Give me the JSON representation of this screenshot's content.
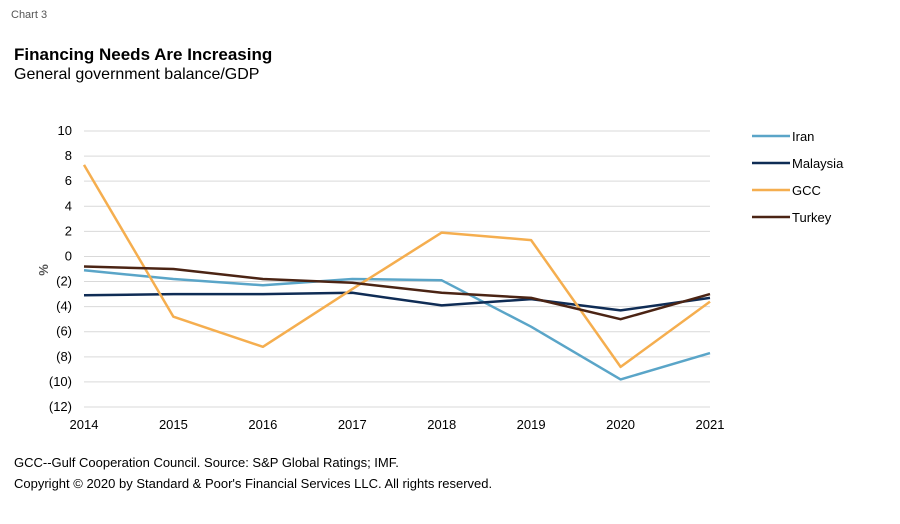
{
  "header": {
    "chart_label": "Chart 3",
    "title": "Financing Needs Are Increasing",
    "subtitle": "General government balance/GDP"
  },
  "footer": {
    "note": "GCC--Gulf Cooperation Council. Source: S&P Global Ratings; IMF.",
    "copyright": "Copyright © 2020 by Standard & Poor's Financial Services LLC. All rights reserved."
  },
  "chart_data": {
    "type": "line",
    "title": "Financing Needs Are Increasing",
    "subtitle": "General government balance/GDP",
    "xlabel": "",
    "ylabel": "%",
    "x": [
      "2014",
      "2015",
      "2016",
      "2017",
      "2018",
      "2019",
      "2020",
      "2021"
    ],
    "ylim": [
      -12,
      10
    ],
    "yticks": [
      10,
      8,
      6,
      4,
      2,
      0,
      -2,
      -4,
      -6,
      -8,
      -10,
      -12
    ],
    "ytick_labels": [
      "10",
      "8",
      "6",
      "4",
      "2",
      "0",
      "(2)",
      "(4)",
      "(6)",
      "(8)",
      "(10)",
      "(12)"
    ],
    "grid": true,
    "legend_position": "right",
    "series": [
      {
        "name": "Iran",
        "color": "#5aa5c8",
        "values": [
          -1.1,
          -1.8,
          -2.3,
          -1.8,
          -1.9,
          -5.6,
          -9.8,
          -7.7
        ]
      },
      {
        "name": "Malaysia",
        "color": "#0f2c55",
        "values": [
          -3.1,
          -3.0,
          -3.0,
          -2.9,
          -3.9,
          -3.4,
          -4.3,
          -3.3
        ]
      },
      {
        "name": "GCC",
        "color": "#f5ae4f",
        "values": [
          7.3,
          -4.8,
          -7.2,
          -2.6,
          1.9,
          1.3,
          -8.8,
          -3.6
        ]
      },
      {
        "name": "Turkey",
        "color": "#4b2414",
        "values": [
          -0.8,
          -1.0,
          -1.8,
          -2.1,
          -2.9,
          -3.3,
          -5.0,
          -3.0
        ]
      }
    ]
  }
}
